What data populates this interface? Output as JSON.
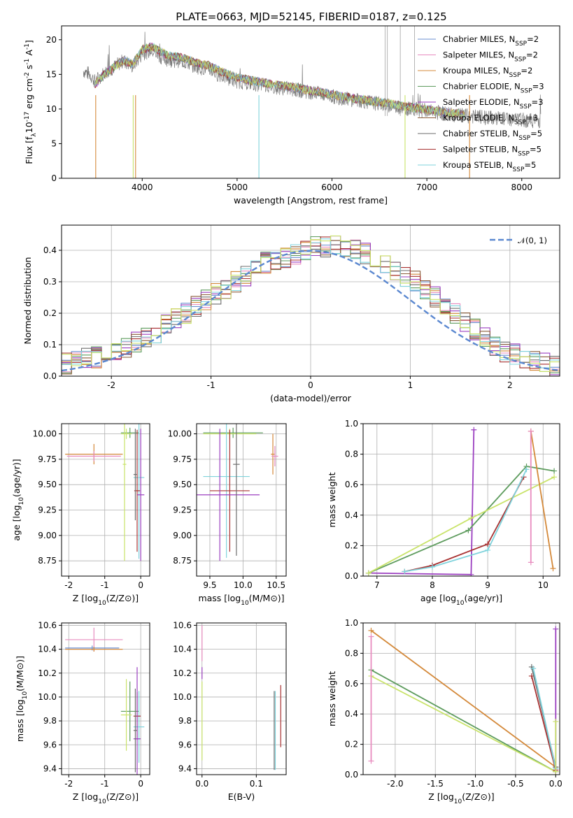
{
  "figure": {
    "title": "PLATE=0663, MJD=52145, FIBERID=0187, z=0.125"
  },
  "colors": {
    "c1": "#6a8fd0",
    "c2": "#e88cbf",
    "c3": "#d4893a",
    "c4": "#5e9c5e",
    "c5": "#9b3fc0",
    "c6": "#8a5c3a",
    "c7": "#6e6e6e",
    "c8": "#a83232",
    "c9": "#7fd3dc",
    "c10": "#c9e36a",
    "grid": "#b0b0b0"
  },
  "chart_data": [
    {
      "id": "spectrum",
      "type": "line",
      "xlabel": "wavelength [Angstrom, rest frame]",
      "ylabel": "Flux [f_λ10^-17 erg cm^-2 s^-1 A^-1]",
      "xlim": [
        3150,
        8400
      ],
      "ylim": [
        0,
        22
      ],
      "xticks": [
        4000,
        5000,
        6000,
        7000,
        8000
      ],
      "yticks": [
        0,
        5,
        10,
        15,
        20
      ],
      "grid": false,
      "legend_position": "top-right",
      "legend": [
        "Chabrier MILES, N_SSP=2",
        "Salpeter MILES, N_SSP=2",
        "Kroupa MILES, N_SSP=2",
        "Chabrier ELODIE, N_SSP=3",
        "Salpeter ELODIE, N_SSP=3",
        "Kroupa ELODIE, N_SSP=3",
        "Chabrier STELIB, N_SSP=5",
        "Salpeter STELIB, N_SSP=5",
        "Kroupa STELIB, N_SSP=5"
      ],
      "data_series": {
        "name": "data",
        "x": [
          3380,
          3450,
          3500,
          3600,
          3700,
          3800,
          3900,
          4000,
          4100,
          4200,
          4300,
          4400,
          4500,
          4600,
          4700,
          4800,
          4900,
          5000,
          5200,
          5400,
          5600,
          5800,
          6000,
          6200,
          6400,
          6600,
          6800,
          7000,
          7200,
          7400,
          7600,
          7800,
          8000,
          8200
        ],
        "y": [
          15.5,
          15.0,
          14.0,
          15.2,
          16.0,
          17.0,
          16.2,
          18.0,
          18.5,
          17.5,
          17.0,
          17.0,
          16.5,
          16.0,
          15.8,
          15.0,
          14.5,
          14.0,
          13.6,
          13.2,
          12.8,
          12.4,
          11.8,
          11.4,
          11.0,
          10.5,
          10.1,
          9.7,
          9.3,
          9.0,
          8.8,
          8.6,
          8.4,
          8.3
        ]
      },
      "model_x": [
        3500,
        3600,
        3700,
        3800,
        3900,
        4000,
        4100,
        4200,
        4300,
        4400,
        4500,
        4600,
        4700,
        4800,
        4900,
        5000,
        5200,
        5400,
        5600,
        5800,
        6000,
        6200,
        6400,
        6600,
        6800,
        7000,
        7200,
        7400
      ],
      "model_y": [
        13.5,
        15.0,
        16.0,
        17.0,
        16.5,
        18.6,
        19.0,
        18.2,
        17.6,
        17.5,
        17.0,
        16.6,
        16.3,
        15.6,
        15.0,
        14.5,
        14.0,
        13.5,
        13.1,
        12.6,
        12.1,
        11.6,
        11.2,
        10.8,
        10.3,
        9.9,
        9.5,
        9.2
      ]
    },
    {
      "id": "residual-histogram",
      "type": "line",
      "xlabel": "(data-model)/error",
      "ylabel": "Normed distribution",
      "xlim": [
        -2.5,
        2.5
      ],
      "ylim": [
        0,
        0.48
      ],
      "xticks": [
        -2,
        -1,
        0,
        1,
        2
      ],
      "yticks": [
        0.0,
        0.1,
        0.2,
        0.3,
        0.4
      ],
      "grid": true,
      "legend_position": "top-right",
      "legend": [
        "𝒩(0, 1)"
      ],
      "bin_width": 0.1,
      "hist_base": [
        0.04,
        0.05,
        0.06,
        0.06,
        0.07,
        0.08,
        0.09,
        0.11,
        0.12,
        0.14,
        0.16,
        0.18,
        0.2,
        0.22,
        0.24,
        0.26,
        0.28,
        0.3,
        0.32,
        0.34,
        0.36,
        0.37,
        0.38,
        0.39,
        0.4,
        0.41,
        0.41,
        0.42,
        0.41,
        0.4,
        0.39,
        0.38,
        0.36,
        0.34,
        0.32,
        0.3,
        0.28,
        0.25,
        0.22,
        0.2,
        0.17,
        0.15,
        0.12,
        0.1,
        0.08,
        0.07,
        0.06,
        0.05,
        0.04,
        0.03
      ]
    },
    {
      "id": "age-vs-z",
      "type": "scatter",
      "xlabel": "Z [log10(Z/Z⊙)]",
      "ylabel": "age  [log10(age/yr)]",
      "xlim": [
        -2.2,
        0.25
      ],
      "ylim": [
        8.6,
        10.1
      ],
      "xticks": [
        -2,
        -1,
        0
      ],
      "yticks": [
        8.75,
        9.0,
        9.25,
        9.5,
        9.75,
        10.0
      ],
      "grid": true,
      "points": [
        {
          "x": -1.3,
          "y": 9.8,
          "xerr": 0.8,
          "yerr": 0.1,
          "color": "c3"
        },
        {
          "x": -1.3,
          "y": 9.78,
          "xerr": 0.75,
          "yerr": 0.05,
          "color": "c2"
        },
        {
          "x": -0.3,
          "y": 10.01,
          "xerr": 0.25,
          "yerr": 0.05,
          "color": "c4"
        },
        {
          "x": -0.4,
          "y": 10.0,
          "xerr": 0.15,
          "yerr": 0.05,
          "color": "c10"
        },
        {
          "x": -0.45,
          "y": 9.7,
          "xerr": 0.05,
          "yerr": 0.95,
          "color": "c10"
        },
        {
          "x": -0.05,
          "y": 9.57,
          "xerr": 0.15,
          "yerr": 0.8,
          "color": "c9"
        },
        {
          "x": -0.1,
          "y": 9.44,
          "xerr": 0.08,
          "yerr": 0.6,
          "color": "c8"
        },
        {
          "x": 0.0,
          "y": 9.4,
          "xerr": 0.1,
          "yerr": 0.65,
          "color": "c5"
        },
        {
          "x": -0.15,
          "y": 9.6,
          "xerr": 0.05,
          "yerr": 0.45,
          "color": "c7"
        }
      ]
    },
    {
      "id": "age-vs-mass",
      "type": "scatter",
      "xlabel": "mass [log10(M/M⊙)]",
      "ylabel": "",
      "xlim": [
        9.3,
        10.65
      ],
      "ylim": [
        8.6,
        10.1
      ],
      "xticks": [
        9.5,
        10.0,
        10.5
      ],
      "yticks": [
        8.75,
        9.0,
        9.25,
        9.5,
        9.75,
        10.0
      ],
      "grid": true,
      "points": [
        {
          "x": 9.85,
          "y": 10.01,
          "xerr": 0.45,
          "yerr": 0.05,
          "color": "c4"
        },
        {
          "x": 9.8,
          "y": 10.0,
          "xerr": 0.4,
          "yerr": 0.05,
          "color": "c10"
        },
        {
          "x": 9.75,
          "y": 9.58,
          "xerr": 0.35,
          "yerr": 0.8,
          "color": "c9"
        },
        {
          "x": 9.8,
          "y": 9.44,
          "xerr": 0.3,
          "yerr": 0.6,
          "color": "c8"
        },
        {
          "x": 9.65,
          "y": 9.4,
          "xerr": 0.6,
          "yerr": 0.65,
          "color": "c5"
        },
        {
          "x": 10.45,
          "y": 9.8,
          "xerr": 0.03,
          "yerr": 0.2,
          "color": "c3"
        },
        {
          "x": 10.48,
          "y": 9.78,
          "xerr": 0.05,
          "yerr": 0.1,
          "color": "c2"
        },
        {
          "x": 9.9,
          "y": 9.7,
          "xerr": 0.05,
          "yerr": 0.9,
          "color": "c7"
        }
      ]
    },
    {
      "id": "mass-weight-vs-age",
      "type": "line",
      "xlabel": "age  [log10(age/yr)]",
      "ylabel": "mass weight",
      "xlim": [
        6.75,
        10.3
      ],
      "ylim": [
        0,
        1.0
      ],
      "xticks": [
        7,
        8,
        9,
        10
      ],
      "yticks": [
        0.0,
        0.2,
        0.4,
        0.6,
        0.8,
        1.0
      ],
      "grid": true,
      "series": [
        {
          "color": "c5",
          "x": [
            6.85,
            8.7,
            8.75
          ],
          "y": [
            0.02,
            0.01,
            0.96
          ]
        },
        {
          "color": "c4",
          "x": [
            6.85,
            8.65,
            9.7,
            10.2
          ],
          "y": [
            0.02,
            0.3,
            0.72,
            0.69
          ]
        },
        {
          "color": "c10",
          "x": [
            6.85,
            8.7,
            10.2
          ],
          "y": [
            0.02,
            0.38,
            0.65
          ]
        },
        {
          "color": "c8",
          "x": [
            7.5,
            8.0,
            9.0,
            9.65
          ],
          "y": [
            0.03,
            0.07,
            0.21,
            0.65
          ]
        },
        {
          "color": "c9",
          "x": [
            7.5,
            8.0,
            9.0,
            9.7
          ],
          "y": [
            0.03,
            0.06,
            0.17,
            0.7
          ]
        },
        {
          "color": "c3",
          "x": [
            9.78,
            10.18
          ],
          "y": [
            0.95,
            0.05
          ]
        },
        {
          "color": "c2",
          "x": [
            9.78,
            9.78
          ],
          "y": [
            0.95,
            0.09
          ]
        }
      ]
    },
    {
      "id": "mass-vs-z",
      "type": "scatter",
      "xlabel": "Z [log10(Z/Z⊙)]",
      "ylabel": "mass [log10(M/M⊙)]",
      "xlim": [
        -2.2,
        0.25
      ],
      "ylim": [
        9.35,
        10.62
      ],
      "xticks": [
        -2,
        -1,
        0
      ],
      "yticks": [
        9.4,
        9.6,
        9.8,
        10.0,
        10.2,
        10.4,
        10.6
      ],
      "grid": true,
      "points": [
        {
          "x": -1.3,
          "y": 10.48,
          "xerr": 0.8,
          "yerr": 0.1,
          "color": "c2"
        },
        {
          "x": -1.35,
          "y": 10.41,
          "xerr": 0.75,
          "yerr": 0.02,
          "color": "c1"
        },
        {
          "x": -1.3,
          "y": 10.4,
          "xerr": 0.8,
          "yerr": 0.02,
          "color": "c3"
        },
        {
          "x": -0.3,
          "y": 9.88,
          "xerr": 0.25,
          "yerr": 0.25,
          "color": "c4"
        },
        {
          "x": -0.4,
          "y": 9.85,
          "xerr": 0.15,
          "yerr": 0.3,
          "color": "c10"
        },
        {
          "x": -0.05,
          "y": 9.75,
          "xerr": 0.15,
          "yerr": 0.3,
          "color": "c9"
        },
        {
          "x": -0.1,
          "y": 9.84,
          "xerr": 0.1,
          "yerr": 0.2,
          "color": "c8"
        },
        {
          "x": -0.1,
          "y": 9.65,
          "xerr": 0.1,
          "yerr": 0.6,
          "color": "c5"
        },
        {
          "x": -0.15,
          "y": 9.72,
          "xerr": 0.05,
          "yerr": 0.35,
          "color": "c7"
        }
      ]
    },
    {
      "id": "mass-vs-ebv",
      "type": "scatter",
      "xlabel": "E(B-V)",
      "ylabel": "",
      "xlim": [
        -0.01,
        0.155
      ],
      "ylim": [
        9.35,
        10.62
      ],
      "xticks": [
        0.0,
        0.1
      ],
      "yticks": [
        9.4,
        9.6,
        9.8,
        10.0,
        10.2,
        10.4,
        10.6
      ],
      "grid": true,
      "points": [
        {
          "x": 0.0,
          "y": 10.45,
          "xerr": 0,
          "yerr": 0.15,
          "color": "c2"
        },
        {
          "x": 0.0,
          "y": 10.2,
          "xerr": 0,
          "yerr": 0.05,
          "color": "c5"
        },
        {
          "x": 0.0,
          "y": 9.8,
          "xerr": 0,
          "yerr": 0.33,
          "color": "c10"
        },
        {
          "x": 0.135,
          "y": 9.72,
          "xerr": 0,
          "yerr": 0.33,
          "color": "c9"
        },
        {
          "x": 0.133,
          "y": 9.72,
          "xerr": 0,
          "yerr": 0.33,
          "color": "c7"
        },
        {
          "x": 0.145,
          "y": 9.84,
          "xerr": 0,
          "yerr": 0.26,
          "color": "c8"
        }
      ]
    },
    {
      "id": "mass-weight-vs-z",
      "type": "line",
      "xlabel": "Z [log10(Z/Z⊙)]",
      "ylabel": "mass weight",
      "xlim": [
        -2.4,
        0.05
      ],
      "ylim": [
        0,
        1.0
      ],
      "xticks": [
        -2.0,
        -1.5,
        -1.0,
        -0.5,
        0.0
      ],
      "yticks": [
        0.0,
        0.2,
        0.4,
        0.6,
        0.8,
        1.0
      ],
      "grid": true,
      "series": [
        {
          "color": "c3",
          "x": [
            -2.3,
            0.0
          ],
          "y": [
            0.95,
            0.05
          ]
        },
        {
          "color": "c4",
          "x": [
            -2.3,
            0.0
          ],
          "y": [
            0.69,
            0.02
          ]
        },
        {
          "color": "c10",
          "x": [
            -2.3,
            0.0
          ],
          "y": [
            0.65,
            0.02
          ]
        },
        {
          "color": "c2",
          "x": [
            -2.3,
            -2.3
          ],
          "y": [
            0.91,
            0.09
          ]
        },
        {
          "color": "c8",
          "x": [
            -0.3,
            0.0
          ],
          "y": [
            0.65,
            0.03
          ]
        },
        {
          "color": "c7",
          "x": [
            -0.3,
            0.0
          ],
          "y": [
            0.71,
            0.05
          ]
        },
        {
          "color": "c9",
          "x": [
            -0.28,
            0.0
          ],
          "y": [
            0.7,
            0.04
          ]
        },
        {
          "color": "c5",
          "x": [
            0.0,
            0.0
          ],
          "y": [
            0.96,
            0.02
          ]
        },
        {
          "color": "c10",
          "x": [
            0.0,
            0.0
          ],
          "y": [
            0.35,
            0.02
          ]
        }
      ]
    }
  ]
}
